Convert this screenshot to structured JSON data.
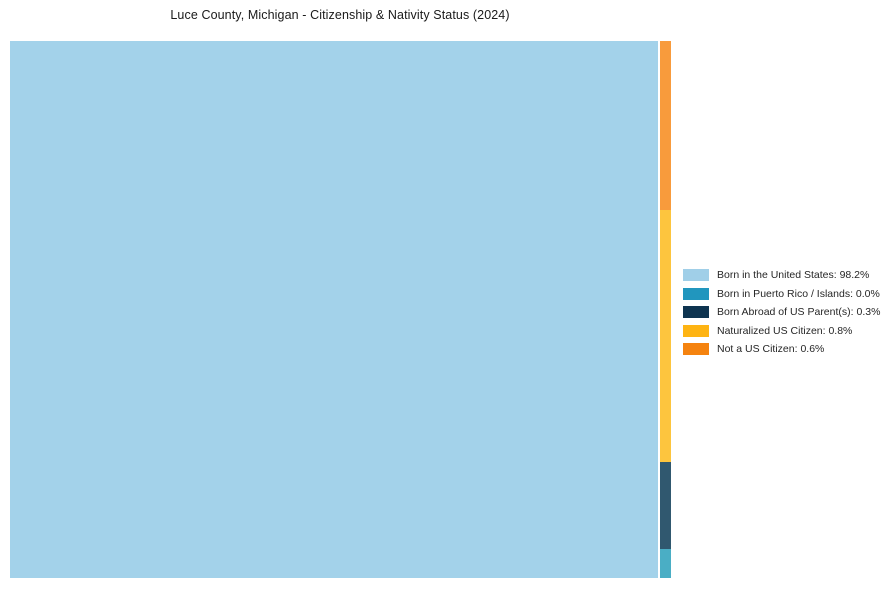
{
  "chart_data": {
    "type": "treemap",
    "title": "Luce County, Michigan - Citizenship & Nativity Status (2024)",
    "categories": [
      "Born in the United States",
      "Born in Puerto Rico / Islands",
      "Born Abroad of US Parent(s)",
      "Naturalized US Citizen",
      "Not a US Citizen"
    ],
    "values": [
      98.2,
      0.0,
      0.3,
      0.8,
      0.6
    ],
    "unit": "%",
    "legend_position": "right",
    "legend_entries": [
      {
        "label": "Born in the United States: 98.2%",
        "color": "#a0cfe8"
      },
      {
        "label": "Born in Puerto Rico / Islands: 0.0%",
        "color": "#2196be"
      },
      {
        "label": "Born Abroad of US Parent(s): 0.3%",
        "color": "#0e3450"
      },
      {
        "label": "Naturalized US Citizen: 0.8%",
        "color": "#feb413"
      },
      {
        "label": "Not a US Citizen: 0.6%",
        "color": "#f5830f"
      }
    ],
    "layout": {
      "main_segment": {
        "label": "Born in the United States",
        "color": "#a3d2ea"
      },
      "strip_segments": [
        {
          "label": "Not a US Citizen",
          "color": "#f89b3c",
          "height_frac": 0.315
        },
        {
          "label": "Naturalized US Citizen",
          "color": "#fdc53e",
          "height_frac": 0.469
        },
        {
          "label": "Born Abroad of US Parent(s)",
          "color": "#30586f",
          "height_frac": 0.162
        },
        {
          "label": "Born in Puerto Rico / Islands",
          "color": "#4aaec5",
          "height_frac": 0.054
        }
      ]
    }
  }
}
